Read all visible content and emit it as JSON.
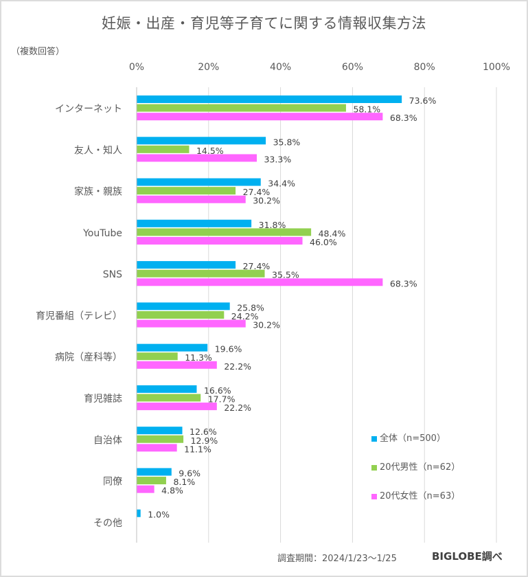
{
  "chart_data": {
    "type": "bar",
    "orientation": "horizontal",
    "title": "妊娠・出産・育児等子育てに関する情報収集方法",
    "subtitle": "（複数回答）",
    "xlabel": "",
    "ylabel": "",
    "xlim": [
      0,
      100
    ],
    "x_ticks": [
      "0%",
      "20%",
      "40%",
      "60%",
      "80%",
      "100%"
    ],
    "x_tick_values": [
      0,
      20,
      40,
      60,
      80,
      100
    ],
    "grid": true,
    "legend_position": "bottom-right",
    "categories": [
      "インターネット",
      "友人・知人",
      "家族・親族",
      "YouTube",
      "SNS",
      "育児番組（テレビ）",
      "病院（産科等）",
      "育児雑誌",
      "自治体",
      "同僚",
      "その他"
    ],
    "series": [
      {
        "name": "全体（n=500）",
        "color": "#00B0F0",
        "values": [
          73.6,
          35.8,
          34.4,
          31.8,
          27.4,
          25.8,
          19.6,
          16.6,
          12.6,
          9.6,
          1.0
        ],
        "labels": [
          "73.6%",
          "35.8%",
          "34.4%",
          "31.8%",
          "27.4%",
          "25.8%",
          "19.6%",
          "16.6%",
          "12.6%",
          "9.6%",
          "1.0%"
        ]
      },
      {
        "name": "20代男性（n=62）",
        "color": "#92D050",
        "values": [
          58.1,
          14.5,
          27.4,
          48.4,
          35.5,
          24.2,
          11.3,
          17.7,
          12.9,
          8.1,
          null
        ],
        "labels": [
          "58.1%",
          "14.5%",
          "27.4%",
          "48.4%",
          "35.5%",
          "24.2%",
          "11.3%",
          "17.7%",
          "12.9%",
          "8.1%",
          null
        ]
      },
      {
        "name": "20代女性（n=63）",
        "color": "#FF66FF",
        "values": [
          68.3,
          33.3,
          30.2,
          46.0,
          68.3,
          30.2,
          22.2,
          22.2,
          11.1,
          4.8,
          null
        ],
        "labels": [
          "68.3%",
          "33.3%",
          "30.2%",
          "46.0%",
          "68.3%",
          "30.2%",
          "22.2%",
          "22.2%",
          "11.1%",
          "4.8%",
          null
        ]
      }
    ],
    "annotations": {
      "survey_period": "調査期間：2024/1/23～1/25",
      "source": "BIGLOBE調べ"
    }
  }
}
